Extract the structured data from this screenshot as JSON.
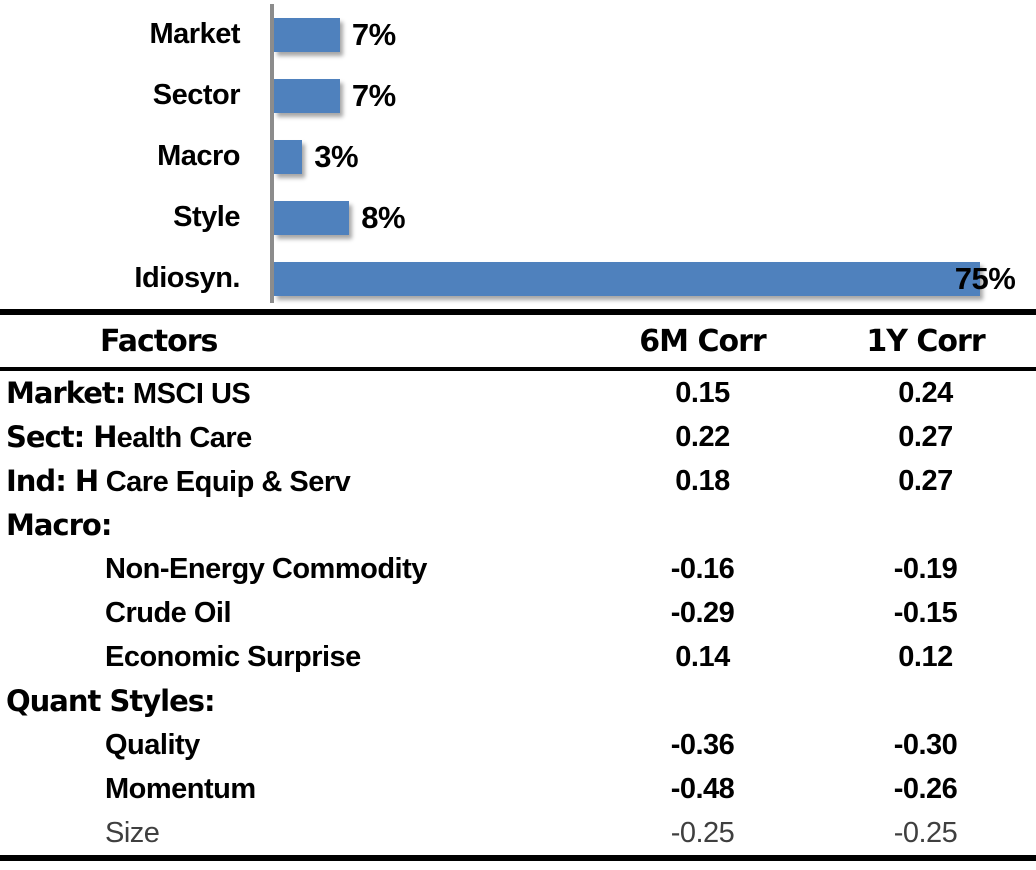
{
  "chart_data": [
    {
      "type": "bar",
      "orientation": "horizontal",
      "title": "",
      "categories": [
        "Market",
        "Sector",
        "Macro",
        "Style",
        "Idiosyn."
      ],
      "values": [
        7,
        7,
        3,
        8,
        75
      ],
      "data_labels": [
        "7%",
        "7%",
        "3%",
        "8%",
        "75%"
      ],
      "unit": "percent",
      "xlim": [
        0,
        80
      ],
      "grid": false,
      "legend": false,
      "bar_color": "#4F81BD",
      "axis_color": "#8C8C8C"
    },
    {
      "type": "table",
      "columns": [
        "Factors",
        "6M Corr",
        "1Y Corr"
      ],
      "rows": [
        {
          "bold": "Market:",
          "text": " MSCI US",
          "indent": 0,
          "c6m": "0.15",
          "c1y": "0.24"
        },
        {
          "bold": "Sect: H",
          "text": "ealth Care",
          "indent": 0,
          "c6m": "0.22",
          "c1y": "0.27"
        },
        {
          "bold": "Ind: H",
          "text": " Care Equip & Serv",
          "indent": 0,
          "c6m": "0.18",
          "c1y": "0.27"
        },
        {
          "bold": "Macro:",
          "text": "",
          "indent": 0,
          "c6m": "",
          "c1y": ""
        },
        {
          "bold": "",
          "text": "Non-Energy Commodity",
          "indent": 1,
          "c6m": "-0.16",
          "c1y": "-0.19"
        },
        {
          "bold": "",
          "text": "Crude Oil",
          "indent": 1,
          "c6m": "-0.29",
          "c1y": "-0.15"
        },
        {
          "bold": "",
          "text": "Economic Surprise",
          "indent": 1,
          "c6m": "0.14",
          "c1y": "0.12"
        },
        {
          "bold": "Quant Styles:",
          "text": "",
          "indent": 0,
          "c6m": "",
          "c1y": ""
        },
        {
          "bold": "",
          "text": "Quality",
          "indent": 1,
          "c6m": "-0.36",
          "c1y": "-0.30"
        },
        {
          "bold": "",
          "text": "Momentum",
          "indent": 1,
          "c6m": "-0.48",
          "c1y": "-0.26"
        },
        {
          "bold": "",
          "text": "Size",
          "indent": 1,
          "c6m": "-0.25",
          "c1y": "-0.25",
          "muted": true
        }
      ]
    }
  ]
}
